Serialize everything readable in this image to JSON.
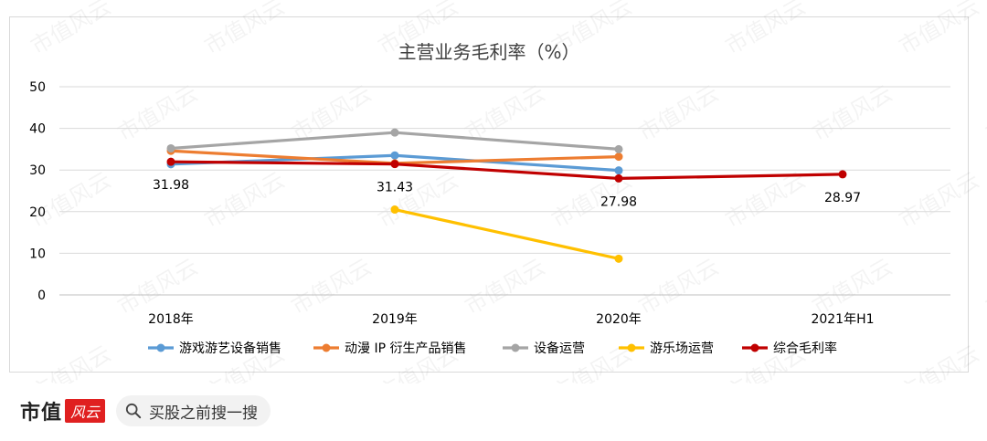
{
  "chart_data": {
    "type": "line",
    "title": "主营业务毛利率（%）",
    "categories": [
      "2018年",
      "2019年",
      "2020年",
      "2021年H1"
    ],
    "ylim": [
      0,
      50
    ],
    "yticks": [
      0,
      10,
      20,
      30,
      40,
      50
    ],
    "grid": true,
    "legend_position": "bottom",
    "series": [
      {
        "name": "游戏游艺设备销售",
        "color": "#5b9bd5",
        "values": [
          31.4,
          33.5,
          29.9,
          null
        ]
      },
      {
        "name": "动漫 IP 衍生产品销售",
        "color": "#ed7d31",
        "values": [
          34.6,
          31.6,
          33.2,
          null
        ]
      },
      {
        "name": "设备运营",
        "color": "#a5a5a5",
        "values": [
          35.2,
          39.0,
          35.0,
          null
        ]
      },
      {
        "name": "游乐场运营",
        "color": "#ffc000",
        "values": [
          null,
          20.5,
          8.7,
          null
        ]
      },
      {
        "name": "综合毛利率",
        "color": "#c00000",
        "values": [
          31.98,
          31.43,
          27.98,
          28.97
        ]
      }
    ],
    "data_labels": {
      "series": "综合毛利率",
      "texts": [
        "31.98",
        "31.43",
        "27.98",
        "28.97"
      ]
    }
  },
  "watermark": "市值风云",
  "footer": {
    "brand": "市值",
    "brand_mark": "风云",
    "search_text": "买股之前搜一搜"
  }
}
